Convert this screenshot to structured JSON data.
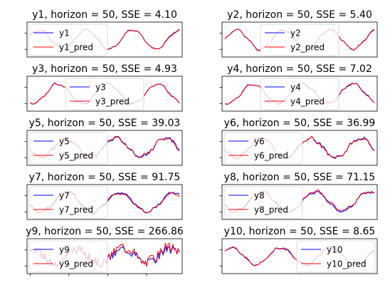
{
  "chart_data": [
    {
      "type": "line",
      "title": "y1, horizon = 50, SSE = 4.10",
      "legend_placement": "upper-left",
      "series": [
        {
          "name": "y1",
          "color": "#0000ff"
        },
        {
          "name": "y1_pred",
          "color": "#ff0000"
        }
      ],
      "shape": {
        "base": 0,
        "amp": 0.85,
        "cyc": 3.2,
        "phase": 0.3,
        "noise": 0.06,
        "dev": 0.03,
        "pdev": 0.2,
        "seed": 1
      }
    },
    {
      "type": "line",
      "title": "y2, horizon = 50, SSE = 5.40",
      "legend_placement": "upper-center",
      "series": [
        {
          "name": "y2",
          "color": "#0000ff"
        },
        {
          "name": "y2_pred",
          "color": "#ff0000"
        }
      ],
      "shape": {
        "base": 0,
        "amp": 0.85,
        "cyc": 3.2,
        "phase": 0.0,
        "noise": 0.06,
        "dev": 0.03,
        "pdev": 0.2,
        "seed": 2
      }
    },
    {
      "type": "line",
      "title": "y3, horizon = 50, SSE = 4.93",
      "legend_placement": "upper-center",
      "series": [
        {
          "name": "y3",
          "color": "#0000ff"
        },
        {
          "name": "y3_pred",
          "color": "#ff0000"
        }
      ],
      "shape": {
        "base": 0,
        "amp": 0.85,
        "cyc": 3.0,
        "phase": 4.3,
        "noise": 0.06,
        "dev": 0.03,
        "pdev": 0.2,
        "seed": 3
      }
    },
    {
      "type": "line",
      "title": "y4, horizon = 50, SSE = 7.02",
      "legend_placement": "upper-center",
      "series": [
        {
          "name": "y4",
          "color": "#0000ff"
        },
        {
          "name": "y4_pred",
          "color": "#ff0000"
        }
      ],
      "shape": {
        "base": 0,
        "amp": 0.85,
        "cyc": 3.0,
        "phase": 4.3,
        "noise": 0.07,
        "dev": 0.035,
        "pdev": 0.2,
        "seed": 4
      }
    },
    {
      "type": "line",
      "title": "y5, horizon = 50, SSE = 39.03",
      "legend_placement": "upper-left",
      "series": [
        {
          "name": "y5",
          "color": "#0000ff"
        },
        {
          "name": "y5_pred",
          "color": "#ff0000"
        }
      ],
      "shape": {
        "base": 0,
        "amp": 0.85,
        "cyc": 3.0,
        "phase": 3.3,
        "noise": 0.12,
        "dev": 0.08,
        "pdev": 0.25,
        "seed": 5
      }
    },
    {
      "type": "line",
      "title": "y6, horizon = 50, SSE = 36.99",
      "legend_placement": "upper-left",
      "series": [
        {
          "name": "y6",
          "color": "#0000ff"
        },
        {
          "name": "y6_pred",
          "color": "#ff0000"
        }
      ],
      "shape": {
        "base": 0,
        "amp": 0.85,
        "cyc": 3.0,
        "phase": 3.3,
        "noise": 0.12,
        "dev": 0.08,
        "pdev": 0.25,
        "seed": 6
      }
    },
    {
      "type": "line",
      "title": "y7, horizon = 50, SSE = 91.75",
      "legend_placement": "upper-left",
      "series": [
        {
          "name": "y7",
          "color": "#0000ff"
        },
        {
          "name": "y7_pred",
          "color": "#ff0000"
        }
      ],
      "shape": {
        "base": 0,
        "amp": 0.85,
        "cyc": 2.8,
        "phase": 3.5,
        "noise": 0.08,
        "dev": 0.12,
        "pdev": 0.25,
        "seed": 7
      }
    },
    {
      "type": "line",
      "title": "y8, horizon = 50, SSE = 71.15",
      "legend_placement": "upper-left",
      "series": [
        {
          "name": "y8",
          "color": "#0000ff"
        },
        {
          "name": "y8_pred",
          "color": "#ff0000"
        }
      ],
      "shape": {
        "base": 0,
        "amp": 0.85,
        "cyc": 2.8,
        "phase": 3.5,
        "noise": 0.08,
        "dev": 0.1,
        "pdev": 0.25,
        "seed": 8
      }
    },
    {
      "type": "line",
      "title": "y9, horizon = 50, SSE = 266.86",
      "legend_placement": "upper-left",
      "series": [
        {
          "name": "y9",
          "color": "#0000ff"
        },
        {
          "name": "y9_pred",
          "color": "#ff0000"
        }
      ],
      "shape": {
        "base": 0,
        "amp": 0.6,
        "cyc": 3.2,
        "phase": 1.5,
        "noise": 0.35,
        "dev": 0.3,
        "pdev": 0.3,
        "seed": 9
      }
    },
    {
      "type": "line",
      "title": "y10, horizon = 50, SSE = 8.65",
      "legend_placement": "upper-right",
      "series": [
        {
          "name": "y10",
          "color": "#0000ff"
        },
        {
          "name": "y10_pred",
          "color": "#ff0000"
        }
      ],
      "shape": {
        "base": 0,
        "amp": 0.75,
        "cyc": 3.0,
        "phase": 0.8,
        "noise": 0.07,
        "dev": 0.04,
        "pdev": 0.2,
        "seed": 10
      }
    }
  ]
}
